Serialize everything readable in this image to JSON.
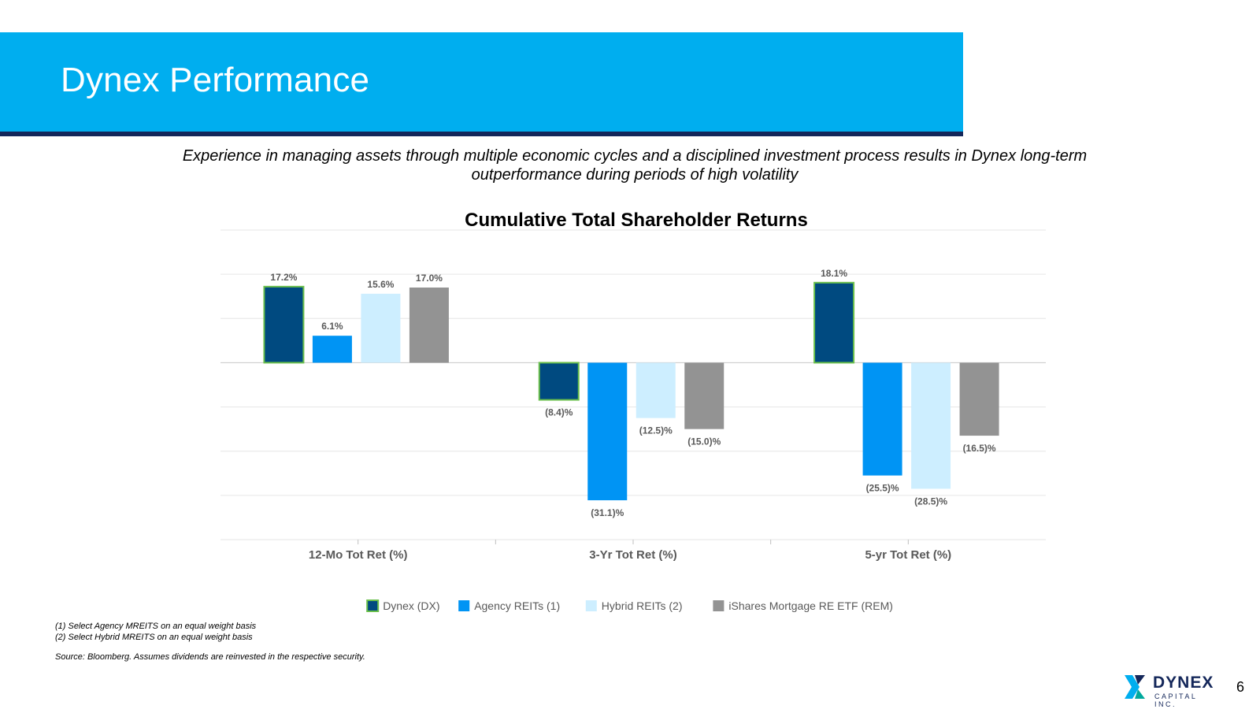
{
  "slide": {
    "title": "Dynex Performance",
    "subtitle": "Experience in managing assets through multiple economic cycles and a disciplined investment process results in Dynex long-term outperformance during periods of high volatility",
    "page_number": "6"
  },
  "footnotes": {
    "note1": "(1) Select Agency MREITS on an equal weight basis",
    "note2": "(2) Select Hybrid MREITS on an equal weight basis",
    "source": "Source: Bloomberg. Assumes dividends are reinvested in the respective security."
  },
  "logo": {
    "name": "DYNEX",
    "subtext": "CAPITAL INC.",
    "colors": {
      "navy": "#14275a",
      "teal": "#00a99d",
      "blue": "#00aeef"
    }
  },
  "chart_data": {
    "type": "bar",
    "title": "Cumulative Total Shareholder Returns",
    "categories": [
      "12-Mo Tot Ret (%)",
      "3-Yr Tot Ret (%)",
      "5-yr Tot Ret (%)"
    ],
    "series": [
      {
        "name": "Dynex (DX)",
        "values": [
          17.2,
          -8.4,
          18.1
        ],
        "labels": [
          "17.2%",
          "(8.4)%",
          "18.1%"
        ],
        "color": "#004a80",
        "outline": "#6abf4b"
      },
      {
        "name": "Agency REITs (1)",
        "values": [
          6.1,
          -31.1,
          -25.5
        ],
        "labels": [
          "6.1%",
          "(31.1)%",
          "(25.5)%"
        ],
        "color": "#0094f4"
      },
      {
        "name": "Hybrid REITs (2)",
        "values": [
          15.6,
          -12.5,
          -28.5
        ],
        "labels": [
          "15.6%",
          "(12.5)%",
          "(28.5)%"
        ],
        "color": "#cdeeff"
      },
      {
        "name": "iShares Mortgage RE ETF (REM)",
        "values": [
          17.0,
          -15.0,
          -16.5
        ],
        "labels": [
          "17.0%",
          "(15.0)%",
          "(16.5)%"
        ],
        "color": "#939393"
      }
    ],
    "ylim": [
      -40,
      30
    ],
    "grid": true,
    "legend": "bottom"
  }
}
